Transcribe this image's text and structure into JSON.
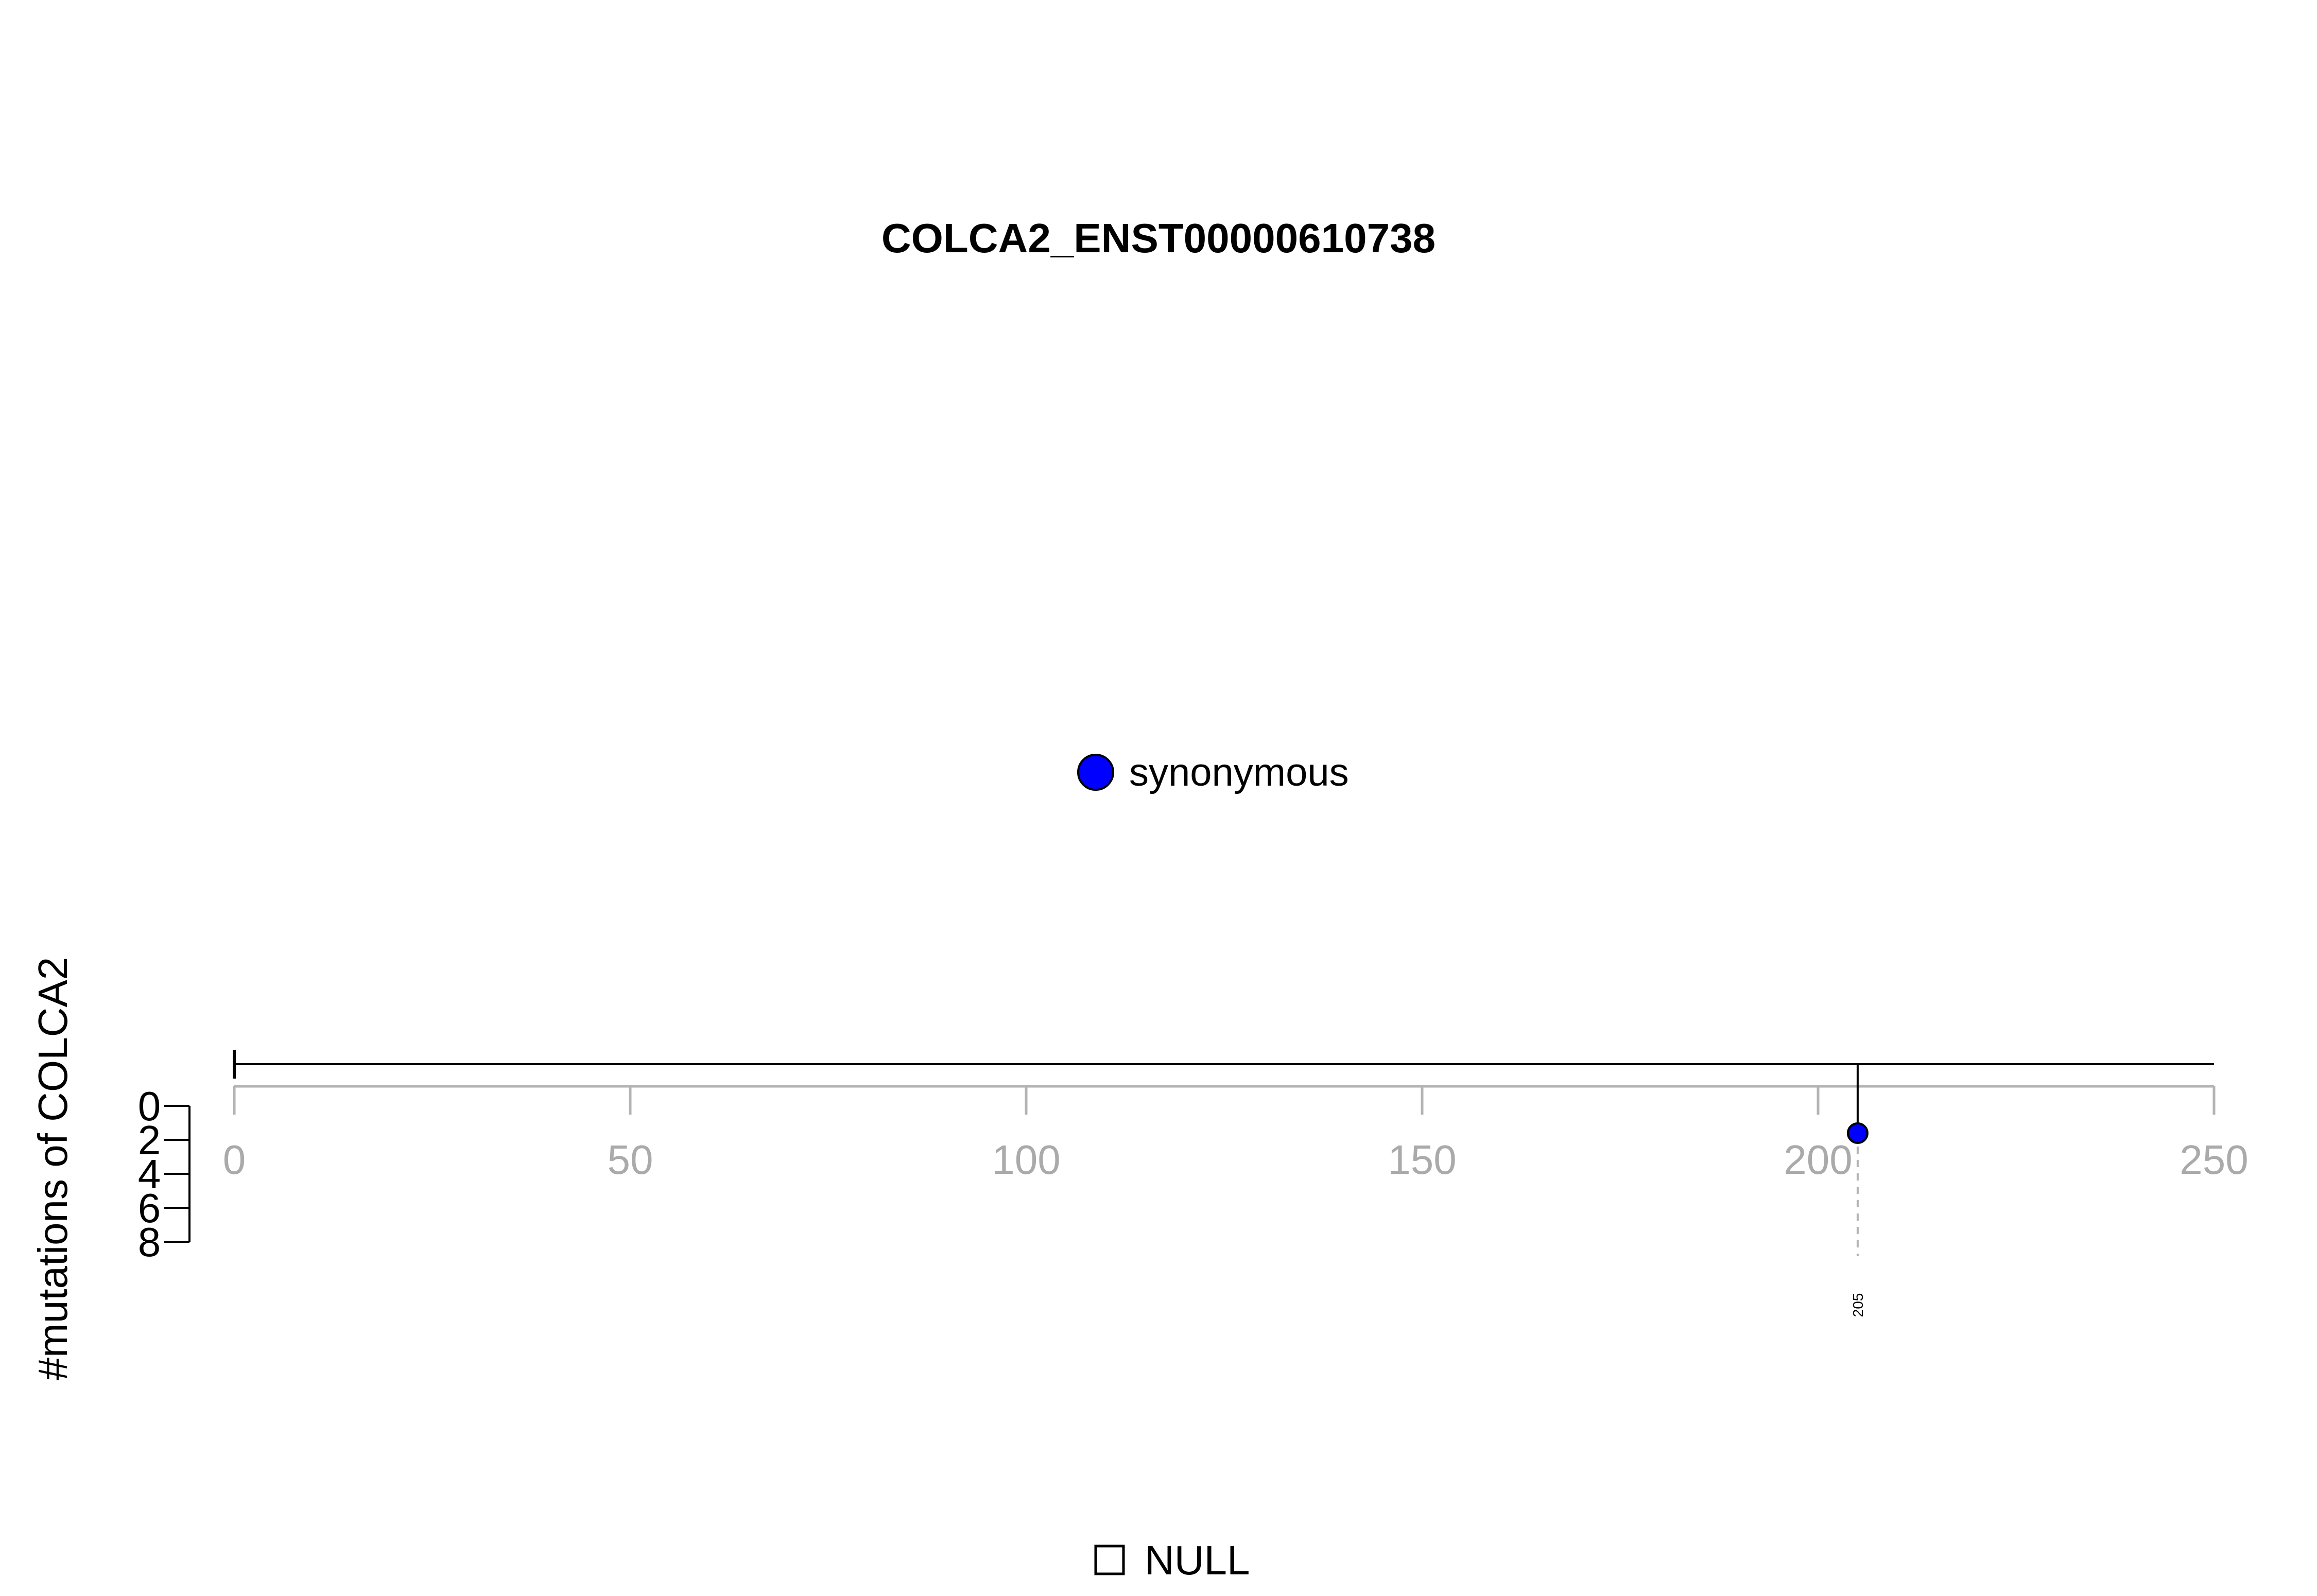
{
  "chart_data": {
    "type": "scatter",
    "title": "COLCA2_ENST00000610738",
    "ylabel": "#mutations of COLCA2",
    "xlabel": "",
    "xlim": [
      0,
      250
    ],
    "x_ticks": [
      0,
      50,
      100,
      150,
      200,
      250
    ],
    "x_tick_labels": [
      "0",
      "50",
      "100",
      "150",
      "200",
      "250"
    ],
    "ylim": [
      0,
      8
    ],
    "y_ticks": [
      0,
      2,
      4,
      6,
      8
    ],
    "y_tick_labels": [
      "0",
      "2",
      "4",
      "6",
      "8"
    ],
    "y_axis_inverted": true,
    "protein_length": 250,
    "series": [
      {
        "name": "synonymous",
        "color": "#0000ff",
        "points": [
          {
            "x": 205,
            "y": 1,
            "label": "205"
          }
        ]
      }
    ],
    "legend": {
      "placement": "center",
      "entries": [
        {
          "label": "synonymous",
          "color": "#0000ff",
          "symbol": "circle"
        }
      ]
    },
    "domain_legend": {
      "placement": "bottom",
      "entries": [
        {
          "label": "NULL",
          "symbol": "open-square"
        }
      ]
    },
    "grid": false
  },
  "colors": {
    "axis": "#000000",
    "x_axis_gray": "#b3b3b3",
    "tick_label_gray": "#aaaaaa",
    "guide_line": "#b3b3b3",
    "point_fill": "#0000ff",
    "point_stroke": "#000000"
  }
}
